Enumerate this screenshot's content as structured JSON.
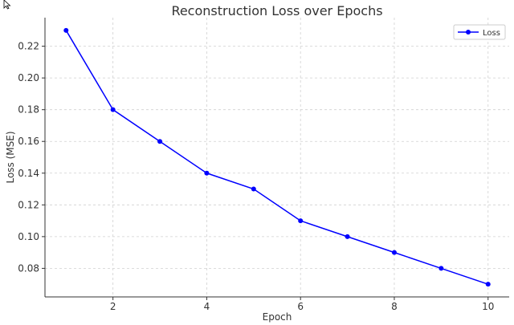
{
  "chart_data": {
    "type": "line",
    "title": "Reconstruction Loss over Epochs",
    "xlabel": "Epoch",
    "ylabel": "Loss (MSE)",
    "x": [
      1,
      2,
      3,
      4,
      5,
      6,
      7,
      8,
      9,
      10
    ],
    "series": [
      {
        "name": "Loss",
        "color": "#0000ff",
        "values": [
          0.23,
          0.18,
          0.16,
          0.14,
          0.13,
          0.11,
          0.1,
          0.09,
          0.08,
          0.07
        ]
      }
    ],
    "xticks": [
      2,
      4,
      6,
      8,
      10
    ],
    "xtick_labels": [
      "2",
      "4",
      "6",
      "8",
      "10"
    ],
    "yticks": [
      0.08,
      0.1,
      0.12,
      0.14,
      0.16,
      0.18,
      0.2,
      0.22
    ],
    "ytick_labels": [
      "0.08",
      "0.10",
      "0.12",
      "0.14",
      "0.16",
      "0.18",
      "0.20",
      "0.22"
    ],
    "xlim": [
      0.55,
      10.45
    ],
    "ylim": [
      0.062,
      0.238
    ],
    "grid": true,
    "legend": {
      "position": "top-right",
      "label": "Loss"
    }
  },
  "icons": {
    "cursor": "mouse-pointer-icon"
  }
}
